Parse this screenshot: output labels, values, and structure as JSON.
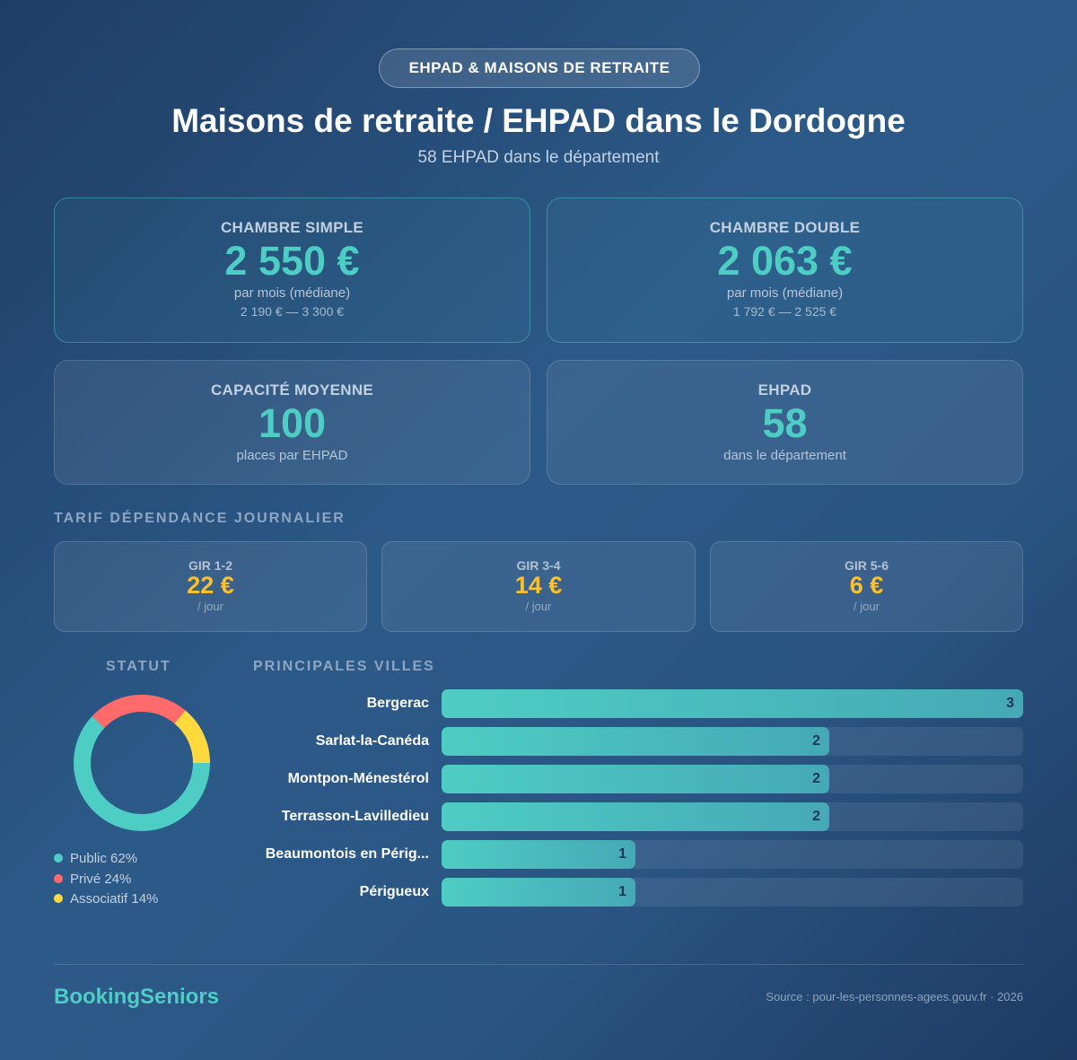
{
  "badge": "EHPAD & MAISONS DE RETRAITE",
  "title": "Maisons de retraite / EHPAD dans le Dordogne",
  "subtitle": "58 EHPAD dans le département",
  "cards": [
    {
      "label": "CHAMBRE SIMPLE",
      "value": "2 550 €",
      "sub": "par mois (médiane)",
      "range": "2 190 € — 3 300 €"
    },
    {
      "label": "CHAMBRE DOUBLE",
      "value": "2 063 €",
      "sub": "par mois (médiane)",
      "range": "1 792 € — 2 525 €"
    },
    {
      "label": "CAPACITÉ MOYENNE",
      "value": "100",
      "sub": "places par EHPAD"
    },
    {
      "label": "EHPAD",
      "value": "58",
      "sub": "dans le département"
    }
  ],
  "tarif": {
    "title": "TARIF DÉPENDANCE JOURNALIER",
    "items": [
      {
        "label": "GIR 1-2",
        "value": "22 €",
        "unit": "/ jour"
      },
      {
        "label": "GIR 3-4",
        "value": "14 €",
        "unit": "/ jour"
      },
      {
        "label": "GIR 5-6",
        "value": "6 €",
        "unit": "/ jour"
      }
    ]
  },
  "chart_data": [
    {
      "type": "pie",
      "title": "STATUT",
      "donut": true,
      "slices": [
        {
          "name": "Public",
          "value": 62,
          "label": "Public 62%",
          "color": "#4ecdc4"
        },
        {
          "name": "Privé",
          "value": 24,
          "label": "Privé 24%",
          "color": "#ff6b6b"
        },
        {
          "name": "Associatif",
          "value": 14,
          "label": "Associatif 14%",
          "color": "#ffd93d"
        }
      ]
    },
    {
      "type": "bar",
      "orientation": "horizontal",
      "title": "PRINCIPALES VILLES",
      "xlim": [
        0,
        3
      ],
      "categories": [
        "Bergerac",
        "Sarlat-la-Canéda",
        "Montpon-Ménestérol",
        "Terrasson-Lavilledieu",
        "Beaumontois en Périg...",
        "Périgueux"
      ],
      "values": [
        3,
        2,
        2,
        2,
        1,
        1
      ]
    }
  ],
  "footer": {
    "brand": "BookingSeniors",
    "source": "Source : pour-les-personnes-agees.gouv.fr · 2026"
  }
}
